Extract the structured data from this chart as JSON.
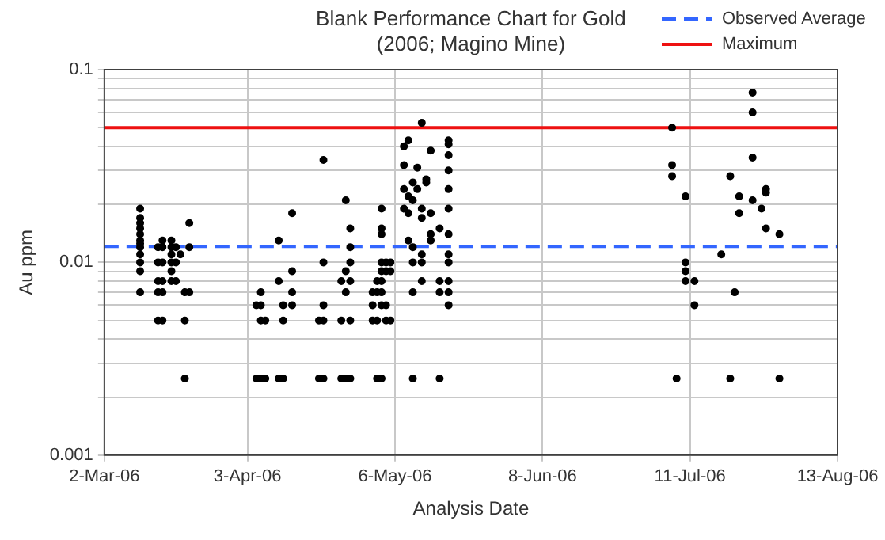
{
  "chart_data": {
    "type": "scatter",
    "title": "Blank Performance Chart for Gold",
    "subtitle": "(2006; Magino Mine)",
    "xlabel": "Analysis Date",
    "ylabel": "Au ppm",
    "x": [
      "2006-03-10",
      "2006-03-10",
      "2006-03-10",
      "2006-03-10",
      "2006-03-10",
      "2006-03-10",
      "2006-03-10",
      "2006-03-10",
      "2006-03-10",
      "2006-03-10",
      "2006-03-10",
      "2006-03-10",
      "2006-03-14",
      "2006-03-14",
      "2006-03-14",
      "2006-03-14",
      "2006-03-14",
      "2006-03-15",
      "2006-03-15",
      "2006-03-15",
      "2006-03-15",
      "2006-03-15",
      "2006-03-15",
      "2006-03-17",
      "2006-03-17",
      "2006-03-17",
      "2006-03-17",
      "2006-03-17",
      "2006-03-17",
      "2006-03-18",
      "2006-03-18",
      "2006-03-18",
      "2006-03-19",
      "2006-03-20",
      "2006-03-20",
      "2006-03-20",
      "2006-03-21",
      "2006-03-21",
      "2006-03-21",
      "2006-04-05",
      "2006-04-05",
      "2006-04-06",
      "2006-04-06",
      "2006-04-06",
      "2006-04-06",
      "2006-04-07",
      "2006-04-07",
      "2006-04-10",
      "2006-04-10",
      "2006-04-10",
      "2006-04-11",
      "2006-04-11",
      "2006-04-11",
      "2006-04-13",
      "2006-04-13",
      "2006-04-13",
      "2006-04-13",
      "2006-04-19",
      "2006-04-19",
      "2006-04-20",
      "2006-04-20",
      "2006-04-20",
      "2006-04-20",
      "2006-04-20",
      "2006-04-24",
      "2006-04-24",
      "2006-04-24",
      "2006-04-25",
      "2006-04-25",
      "2006-04-25",
      "2006-04-25",
      "2006-04-26",
      "2006-04-26",
      "2006-04-26",
      "2006-04-26",
      "2006-04-26",
      "2006-04-26",
      "2006-05-01",
      "2006-05-01",
      "2006-05-01",
      "2006-05-02",
      "2006-05-02",
      "2006-05-02",
      "2006-05-02",
      "2006-05-03",
      "2006-05-03",
      "2006-05-03",
      "2006-05-03",
      "2006-05-03",
      "2006-05-03",
      "2006-05-03",
      "2006-05-03",
      "2006-05-03",
      "2006-05-04",
      "2006-05-04",
      "2006-05-04",
      "2006-05-04",
      "2006-05-05",
      "2006-05-05",
      "2006-05-05",
      "2006-05-08",
      "2006-05-08",
      "2006-05-08",
      "2006-05-08",
      "2006-05-09",
      "2006-05-09",
      "2006-05-09",
      "2006-05-09",
      "2006-05-10",
      "2006-05-10",
      "2006-05-10",
      "2006-05-10",
      "2006-05-10",
      "2006-05-10",
      "2006-05-11",
      "2006-05-11",
      "2006-05-12",
      "2006-05-12",
      "2006-05-12",
      "2006-05-12",
      "2006-05-12",
      "2006-05-12",
      "2006-05-13",
      "2006-05-13",
      "2006-05-14",
      "2006-05-14",
      "2006-05-14",
      "2006-05-14",
      "2006-05-16",
      "2006-05-16",
      "2006-05-16",
      "2006-05-16",
      "2006-05-18",
      "2006-05-18",
      "2006-05-18",
      "2006-05-18",
      "2006-05-18",
      "2006-05-18",
      "2006-05-18",
      "2006-05-18",
      "2006-05-18",
      "2006-05-18",
      "2006-05-18",
      "2006-05-18",
      "2006-07-07",
      "2006-07-07",
      "2006-07-07",
      "2006-07-08",
      "2006-07-10",
      "2006-07-10",
      "2006-07-10",
      "2006-07-10",
      "2006-07-12",
      "2006-07-12",
      "2006-07-18",
      "2006-07-20",
      "2006-07-20",
      "2006-07-21",
      "2006-07-22",
      "2006-07-22",
      "2006-07-25",
      "2006-07-25",
      "2006-07-25",
      "2006-07-25",
      "2006-07-27",
      "2006-07-28",
      "2006-07-28",
      "2006-07-28",
      "2006-07-31",
      "2006-07-31"
    ],
    "values": [
      0.019,
      0.017,
      0.016,
      0.015,
      0.014,
      0.013,
      0.0125,
      0.012,
      0.011,
      0.01,
      0.009,
      0.007,
      0.012,
      0.01,
      0.008,
      0.007,
      0.005,
      0.013,
      0.012,
      0.01,
      0.008,
      0.007,
      0.005,
      0.013,
      0.012,
      0.011,
      0.01,
      0.009,
      0.008,
      0.012,
      0.01,
      0.008,
      0.011,
      0.007,
      0.005,
      0.0025,
      0.016,
      0.012,
      0.007,
      0.006,
      0.0025,
      0.007,
      0.006,
      0.005,
      0.0025,
      0.005,
      0.0025,
      0.013,
      0.008,
      0.0025,
      0.006,
      0.005,
      0.0025,
      0.018,
      0.009,
      0.007,
      0.006,
      0.005,
      0.0025,
      0.034,
      0.01,
      0.006,
      0.005,
      0.0025,
      0.008,
      0.005,
      0.0025,
      0.021,
      0.009,
      0.007,
      0.0025,
      0.015,
      0.012,
      0.01,
      0.008,
      0.005,
      0.0025,
      0.007,
      0.006,
      0.005,
      0.008,
      0.007,
      0.005,
      0.0025,
      0.019,
      0.015,
      0.014,
      0.01,
      0.009,
      0.008,
      0.007,
      0.006,
      0.0025,
      0.01,
      0.009,
      0.006,
      0.005,
      0.01,
      0.009,
      0.005,
      0.04,
      0.032,
      0.024,
      0.019,
      0.043,
      0.022,
      0.018,
      0.013,
      0.026,
      0.021,
      0.012,
      0.01,
      0.007,
      0.0025,
      0.031,
      0.024,
      0.053,
      0.019,
      0.017,
      0.011,
      0.01,
      0.008,
      0.027,
      0.026,
      0.038,
      0.018,
      0.014,
      0.013,
      0.015,
      0.008,
      0.007,
      0.0025,
      0.043,
      0.041,
      0.036,
      0.03,
      0.024,
      0.019,
      0.014,
      0.011,
      0.01,
      0.008,
      0.007,
      0.006,
      0.05,
      0.032,
      0.028,
      0.0025,
      0.022,
      0.01,
      0.009,
      0.008,
      0.008,
      0.006,
      0.011,
      0.028,
      0.0025,
      0.007,
      0.022,
      0.018,
      0.076,
      0.06,
      0.035,
      0.021,
      0.019,
      0.024,
      0.023,
      0.015,
      0.014,
      0.0025
    ],
    "color": "#000000",
    "marker": "circle",
    "log": "y",
    "grid": true,
    "legend": "top right",
    "xlim": [
      "2006-03-02",
      "2006-08-13"
    ],
    "xticks": [
      {
        "value": "2006-03-02",
        "label": "2-Mar-06"
      },
      {
        "value": "2006-04-03",
        "label": "3-Apr-06"
      },
      {
        "value": "2006-05-06",
        "label": "6-May-06"
      },
      {
        "value": "2006-06-08",
        "label": "8-Jun-06"
      },
      {
        "value": "2006-07-11",
        "label": "11-Jul-06"
      },
      {
        "value": "2006-08-13",
        "label": "13-Aug-06"
      }
    ],
    "ylim": [
      0.001,
      0.1
    ],
    "yticks": [
      0.001,
      {
        "value": 0.002,
        "label": null
      },
      {
        "value": 0.003,
        "label": null
      },
      {
        "value": 0.004,
        "label": null
      },
      {
        "value": 0.005,
        "label": null
      },
      {
        "value": 0.006,
        "label": null
      },
      {
        "value": 0.007,
        "label": null
      },
      {
        "value": 0.008,
        "label": null
      },
      {
        "value": 0.009,
        "label": null
      },
      0.01,
      {
        "value": 0.02,
        "label": null
      },
      {
        "value": 0.03,
        "label": null
      },
      {
        "value": 0.04,
        "label": null
      },
      {
        "value": 0.05,
        "label": null
      },
      {
        "value": 0.06,
        "label": null
      },
      {
        "value": 0.07,
        "label": null
      },
      {
        "value": 0.08,
        "label": null
      },
      {
        "value": 0.09,
        "label": null
      },
      0.1
    ],
    "ref_lines": [
      {
        "axis": "y",
        "value": 0.0121,
        "label": "Observed Average",
        "color": "#3366ff",
        "line_style": "dashed"
      },
      {
        "axis": "y",
        "value": 0.05,
        "label": "Maximum",
        "color": "#ee1111",
        "line_style": "solid"
      }
    ]
  }
}
